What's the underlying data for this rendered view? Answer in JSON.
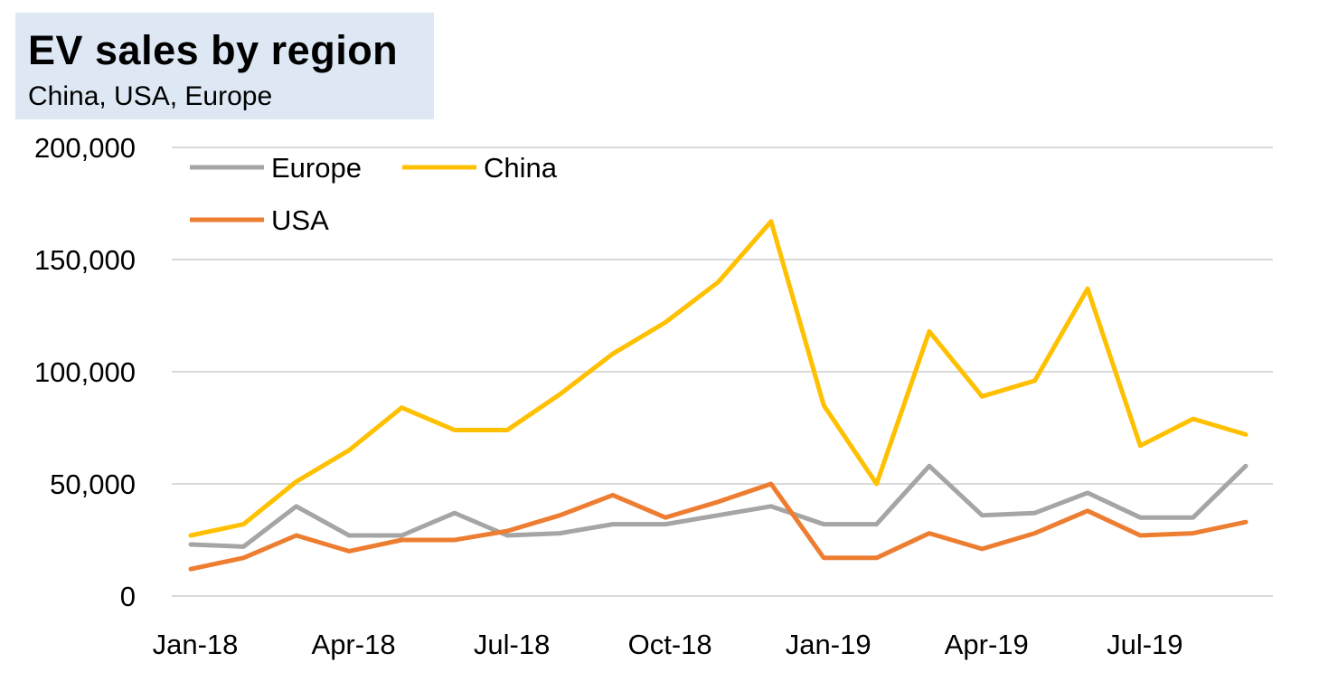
{
  "chart_data": {
    "type": "line",
    "title": "EV sales by region",
    "subtitle": "China, USA, Europe",
    "x": [
      "Jan-18",
      "Feb-18",
      "Mar-18",
      "Apr-18",
      "May-18",
      "Jun-18",
      "Jul-18",
      "Aug-18",
      "Sep-18",
      "Oct-18",
      "Nov-18",
      "Dec-18",
      "Jan-19",
      "Feb-19",
      "Mar-19",
      "Apr-19",
      "May-19",
      "Jun-19",
      "Jul-19",
      "Aug-19",
      "Sep-19"
    ],
    "x_tick_labels": [
      "Jan-18",
      "Apr-18",
      "Jul-18",
      "Oct-18",
      "Jan-19",
      "Apr-19",
      "Jul-19"
    ],
    "y_tick_labels": [
      "0",
      "50,000",
      "100,000",
      "150,000",
      "200,000"
    ],
    "ylim": [
      0,
      200000
    ],
    "grid": "horizontal",
    "legend": "top-left",
    "series": [
      {
        "name": "Europe",
        "color": "#a5a5a5",
        "values": [
          23000,
          22000,
          40000,
          27000,
          27000,
          37000,
          27000,
          28000,
          32000,
          32000,
          36000,
          40000,
          32000,
          32000,
          58000,
          36000,
          37000,
          46000,
          35000,
          35000,
          58000
        ]
      },
      {
        "name": "China",
        "color": "#ffc000",
        "values": [
          27000,
          32000,
          51000,
          65000,
          84000,
          74000,
          74000,
          90000,
          108000,
          122000,
          140000,
          167000,
          85000,
          50000,
          118000,
          89000,
          96000,
          137000,
          67000,
          79000,
          72000
        ]
      },
      {
        "name": "USA",
        "color": "#ed7d31",
        "values": [
          12000,
          17000,
          27000,
          20000,
          25000,
          25000,
          29000,
          36000,
          45000,
          35000,
          42000,
          50000,
          17000,
          17000,
          28000,
          21000,
          28000,
          38000,
          27000,
          28000,
          33000
        ]
      }
    ]
  }
}
